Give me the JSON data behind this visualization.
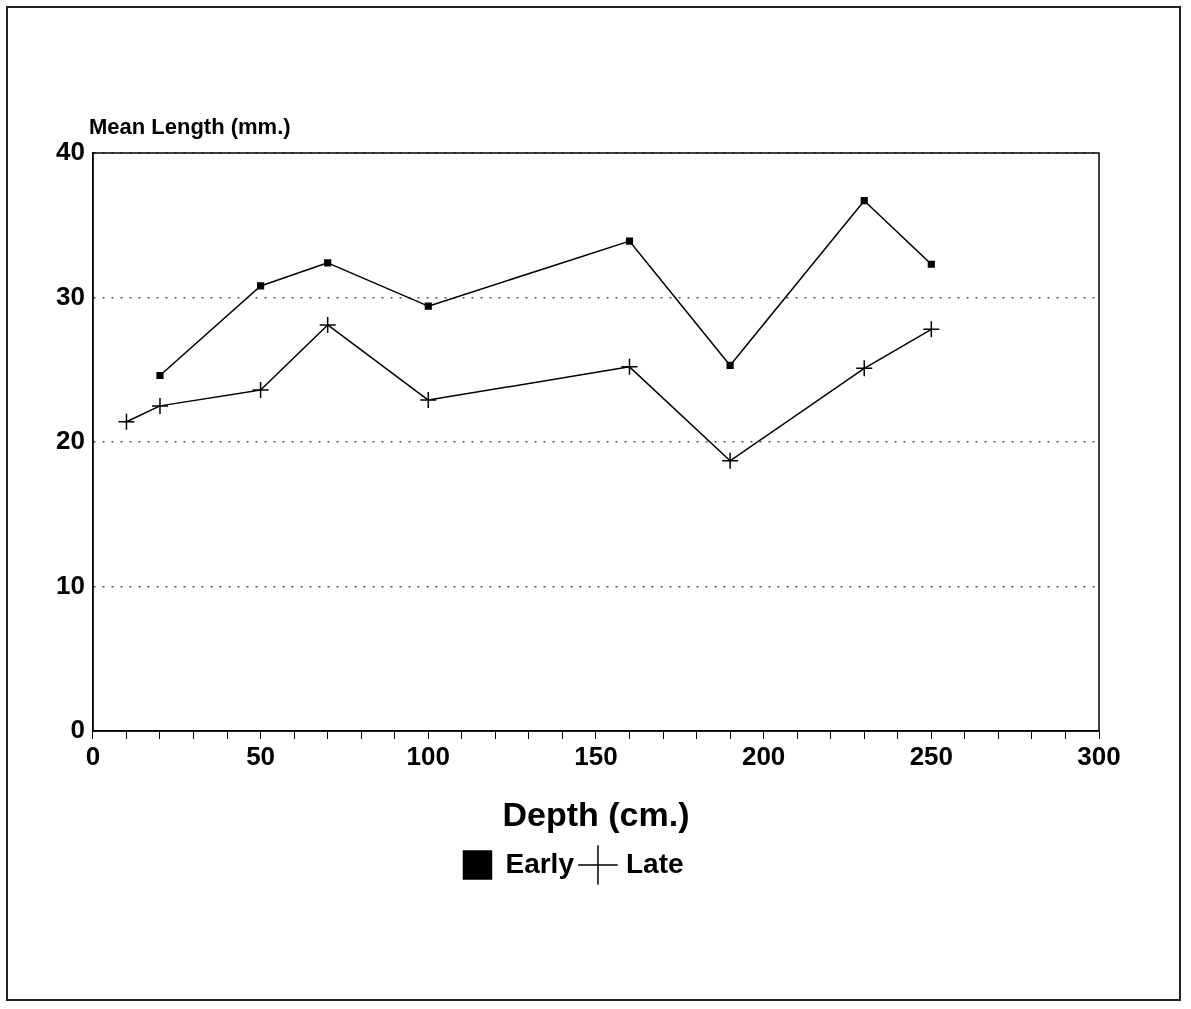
{
  "chart_data": {
    "type": "line",
    "xlabel": "Depth (cm.)",
    "ylabel": "Mean Length (mm.)",
    "xlim": [
      0,
      300
    ],
    "xticks": [
      0,
      {
        "value": 10,
        "label": null
      },
      {
        "value": 20,
        "label": null
      },
      {
        "value": 30,
        "label": null
      },
      {
        "value": 40,
        "label": null
      },
      50,
      {
        "value": 60,
        "label": null
      },
      {
        "value": 70,
        "label": null
      },
      {
        "value": 80,
        "label": null
      },
      {
        "value": 90,
        "label": null
      },
      100,
      {
        "value": 110,
        "label": null
      },
      {
        "value": 120,
        "label": null
      },
      {
        "value": 130,
        "label": null
      },
      {
        "value": 140,
        "label": null
      },
      150,
      {
        "value": 160,
        "label": null
      },
      {
        "value": 170,
        "label": null
      },
      {
        "value": 180,
        "label": null
      },
      {
        "value": 190,
        "label": null
      },
      200,
      {
        "value": 210,
        "label": null
      },
      {
        "value": 220,
        "label": null
      },
      {
        "value": 230,
        "label": null
      },
      {
        "value": 240,
        "label": null
      },
      250,
      {
        "value": 260,
        "label": null
      },
      {
        "value": 270,
        "label": null
      },
      {
        "value": 280,
        "label": null
      },
      {
        "value": 290,
        "label": null
      },
      300
    ],
    "ylim": [
      0,
      40
    ],
    "yticks": [
      0,
      10,
      20,
      30,
      40
    ],
    "grid": "y",
    "legend": "bottom",
    "line_style": "solid",
    "series": [
      {
        "name": "Early",
        "color": "#000000",
        "marker": "square",
        "x": [
          20,
          50,
          70,
          100,
          160,
          190,
          230,
          250
        ],
        "values": [
          24.6,
          30.8,
          32.4,
          29.4,
          33.9,
          25.3,
          36.7,
          32.3
        ]
      },
      {
        "name": "Late",
        "color": "#000000",
        "marker": "cross",
        "x": [
          10,
          20,
          50,
          70,
          100,
          160,
          190,
          230,
          250
        ],
        "values": [
          21.4,
          22.5,
          23.6,
          28.1,
          22.9,
          25.2,
          18.7,
          25.1,
          27.8
        ]
      }
    ]
  }
}
